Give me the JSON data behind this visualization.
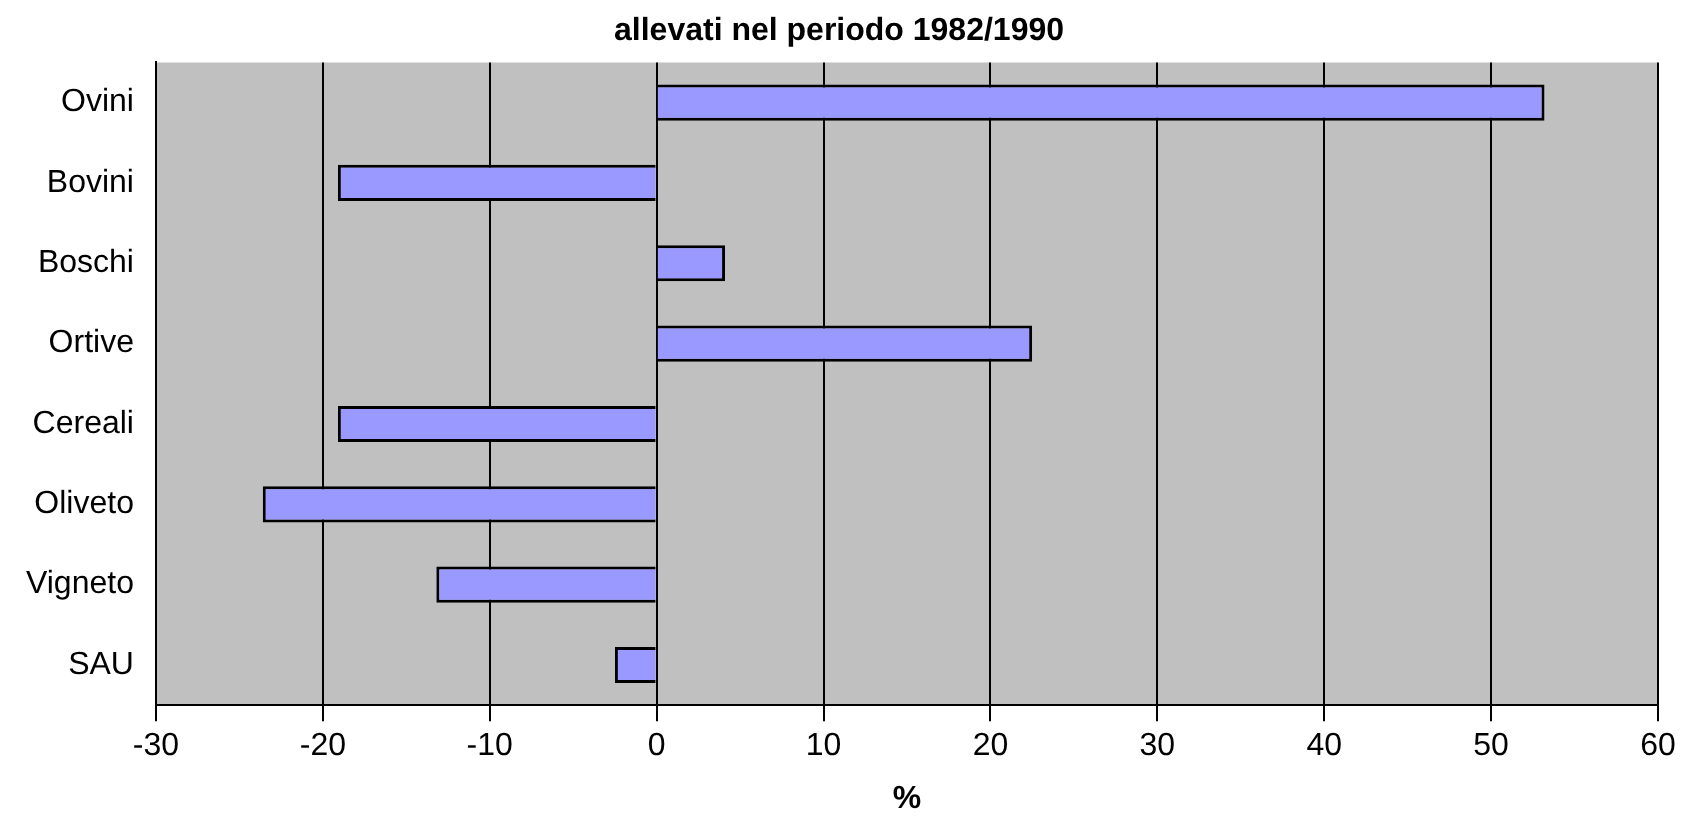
{
  "chart_data": {
    "type": "bar",
    "orientation": "horizontal",
    "title": "allevati nel periodo 1982/1990",
    "xlabel": "%",
    "categories": [
      "Ovini",
      "Bovini",
      "Boschi",
      "Ortive",
      "Cereali",
      "Oliveto",
      "Vigneto",
      "SAU"
    ],
    "values": [
      53.2,
      -19.1,
      4.1,
      22.5,
      -19.1,
      -23.6,
      -13.2,
      -2.5
    ],
    "color": "#9999ff",
    "xlim": [
      -30,
      60
    ],
    "xticks": [
      -30,
      -20,
      -10,
      0,
      10,
      20,
      30,
      40,
      50,
      60
    ],
    "grid": "x"
  }
}
